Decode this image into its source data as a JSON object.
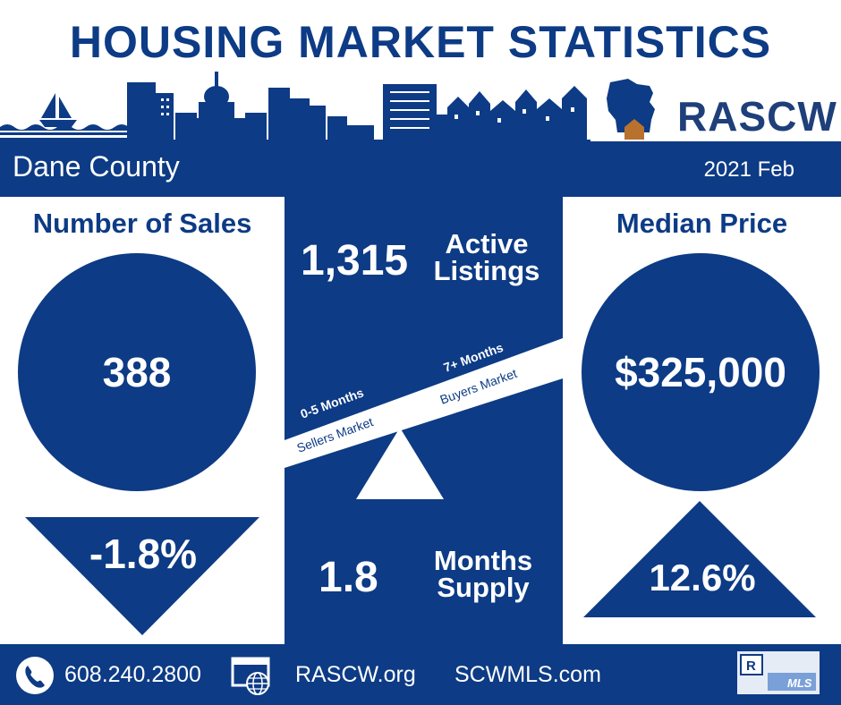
{
  "header": {
    "title": "HOUSING MARKET STATISTICS",
    "brand": "RASCW"
  },
  "band": {
    "region": "Dane County",
    "period": "2021 Feb"
  },
  "sales": {
    "title": "Number of Sales",
    "value": "388",
    "change": "-1.8%"
  },
  "listings": {
    "value": "1,315",
    "label_line1": "Active",
    "label_line2": "Listings"
  },
  "scale": {
    "left_top": "0-5 Months",
    "left_bottom": "Sellers Market",
    "right_top": "7+ Months",
    "right_bottom": "Buyers Market"
  },
  "supply": {
    "value": "1.8",
    "label_line1": "Months",
    "label_line2": "Supply"
  },
  "price": {
    "title": "Median Price",
    "value": "$325,000",
    "change": "12.6%"
  },
  "footer": {
    "phone": "608.240.2800",
    "site1": "RASCW.org",
    "site2": "SCWMLS.com",
    "badge": "MLS"
  },
  "colors": {
    "navy": "#0d3b85",
    "house": "#b9722e"
  }
}
